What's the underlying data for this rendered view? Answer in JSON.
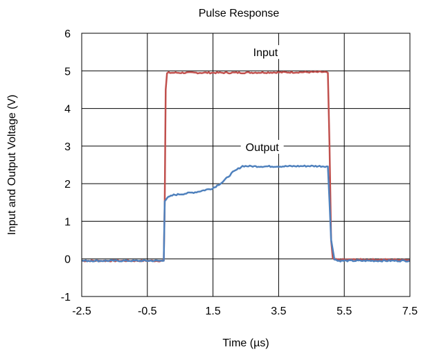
{
  "chart_data": {
    "type": "line",
    "title": "Pulse Response",
    "xlabel": "Time (µs)",
    "ylabel": "Input and Output Voltage (V)",
    "xlim": [
      -2.5,
      7.5
    ],
    "ylim": [
      -1,
      6
    ],
    "xticks": [
      "-2.5",
      "-0.5",
      "1.5",
      "3.5",
      "5.5",
      "7.5"
    ],
    "yticks": [
      "-1",
      "0",
      "1",
      "2",
      "3",
      "4",
      "5",
      "6"
    ],
    "grid": true,
    "legend": "none",
    "series": [
      {
        "name": "Input",
        "color": "#c0504d",
        "x": [
          -2.5,
          0.0,
          0.03,
          0.06,
          0.1,
          0.15,
          2.0,
          4.9,
          5.0,
          5.05,
          5.1,
          5.15,
          5.2,
          7.5
        ],
        "y": [
          -0.05,
          -0.05,
          1.5,
          4.5,
          4.93,
          4.95,
          4.95,
          4.97,
          4.95,
          3.0,
          0.5,
          0.0,
          -0.02,
          -0.02
        ]
      },
      {
        "name": "Output",
        "color": "#4f81bd",
        "x": [
          -2.5,
          0.0,
          0.03,
          0.1,
          0.3,
          0.6,
          1.0,
          1.5,
          1.8,
          2.1,
          2.4,
          2.8,
          3.5,
          4.5,
          5.0,
          5.05,
          5.1,
          5.2,
          5.3,
          7.5
        ],
        "y": [
          -0.05,
          -0.05,
          1.55,
          1.62,
          1.7,
          1.73,
          1.78,
          1.88,
          2.05,
          2.3,
          2.47,
          2.46,
          2.46,
          2.47,
          2.46,
          1.5,
          0.5,
          0.0,
          -0.05,
          -0.05
        ]
      }
    ],
    "annotations": [
      "Input",
      "Output"
    ]
  }
}
